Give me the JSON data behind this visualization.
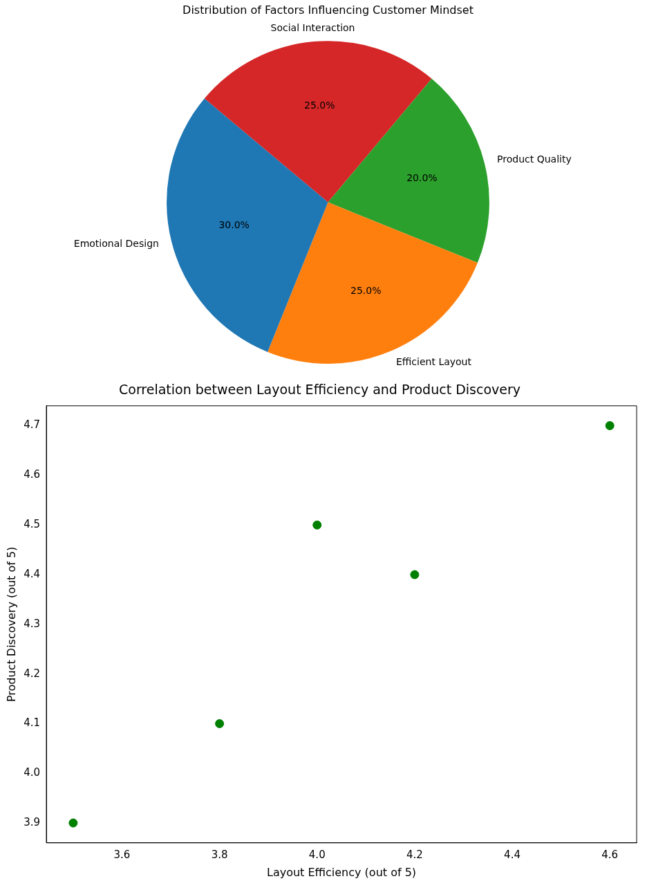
{
  "chart_data": [
    {
      "type": "pie",
      "title": "Distribution of Factors Influencing Customer Mindset",
      "categories": [
        "Social Interaction",
        "Product Quality",
        "Efficient Layout",
        "Emotional Design"
      ],
      "values": [
        25,
        20,
        25,
        30
      ],
      "colors": [
        "#d62728",
        "#2ca02c",
        "#ff7f0e",
        "#1f77b4"
      ],
      "value_labels": [
        "25.0%",
        "20.0%",
        "25.0%",
        "30.0%"
      ],
      "legend": false
    },
    {
      "type": "scatter",
      "title": "Correlation between Layout Efficiency and Product Discovery",
      "xlabel": "Layout Efficiency (out of 5)",
      "ylabel": "Product Discovery (out of 5)",
      "x": [
        3.5,
        3.8,
        4.0,
        4.2,
        4.6
      ],
      "values": [
        3.9,
        4.1,
        4.5,
        4.4,
        4.7
      ],
      "color": "#008000",
      "marker": "circle",
      "xlim": [
        3.445,
        4.655
      ],
      "ylim": [
        3.86,
        4.74
      ],
      "xticks": [
        {
          "value": 3.6,
          "label": "3.6"
        },
        {
          "value": 3.8,
          "label": "3.8"
        },
        {
          "value": 4.0,
          "label": "4.0"
        },
        {
          "value": 4.2,
          "label": "4.2"
        },
        {
          "value": 4.4,
          "label": "4.4"
        },
        {
          "value": 4.6,
          "label": "4.6"
        }
      ],
      "yticks": [
        {
          "value": 3.9,
          "label": "3.9"
        },
        {
          "value": 4.0,
          "label": "4.0"
        },
        {
          "value": 4.1,
          "label": "4.1"
        },
        {
          "value": 4.2,
          "label": "4.2"
        },
        {
          "value": 4.3,
          "label": "4.3"
        },
        {
          "value": 4.4,
          "label": "4.4"
        },
        {
          "value": 4.5,
          "label": "4.5"
        },
        {
          "value": 4.6,
          "label": "4.6"
        },
        {
          "value": 4.7,
          "label": "4.7"
        }
      ],
      "grid": false,
      "legend": false
    }
  ]
}
